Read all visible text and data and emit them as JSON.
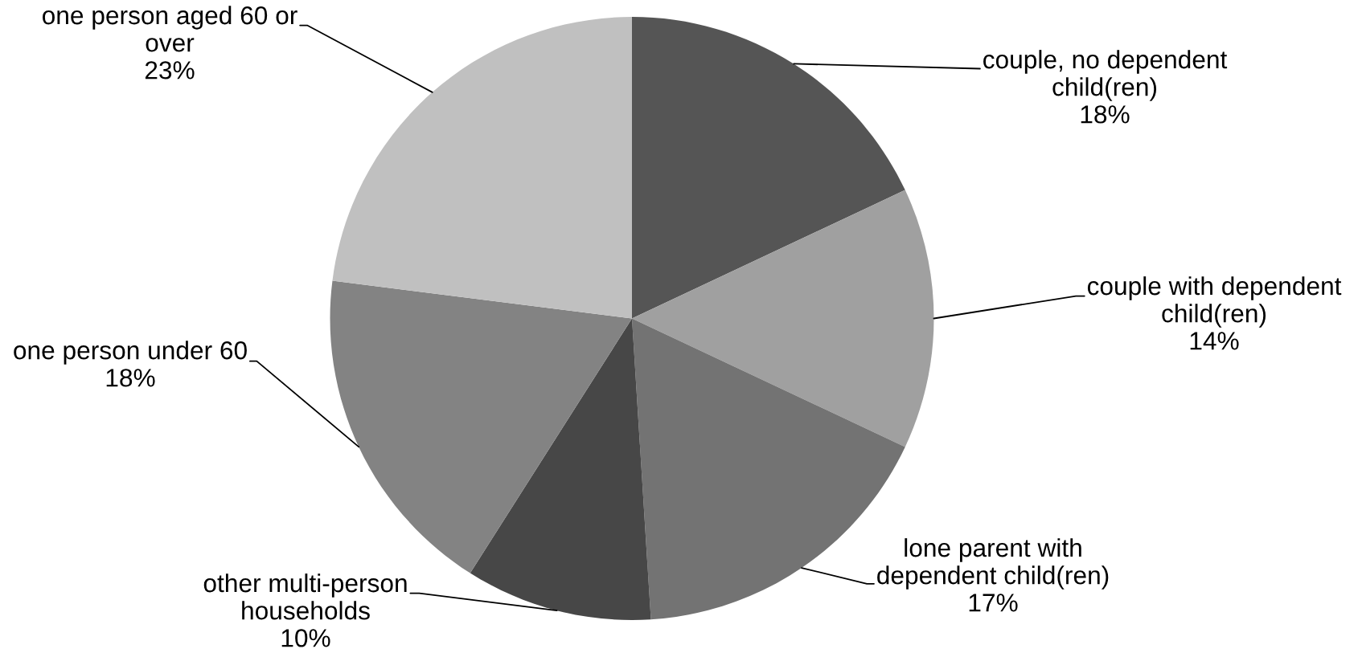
{
  "chart_data": {
    "type": "pie",
    "categories": [
      "couple, no dependent child(ren)",
      "couple with dependent child(ren)",
      "lone parent with dependent child(ren)",
      "other multi-person households",
      "one person under 60",
      "one person aged 60 or over"
    ],
    "values": [
      18,
      14,
      17,
      10,
      18,
      23
    ],
    "value_labels": [
      "18%",
      "14%",
      "17%",
      "10%",
      "18%",
      "23%"
    ],
    "colors": [
      "#555555",
      "#a0a0a0",
      "#737373",
      "#474747",
      "#838383",
      "#c0c0c0"
    ]
  }
}
